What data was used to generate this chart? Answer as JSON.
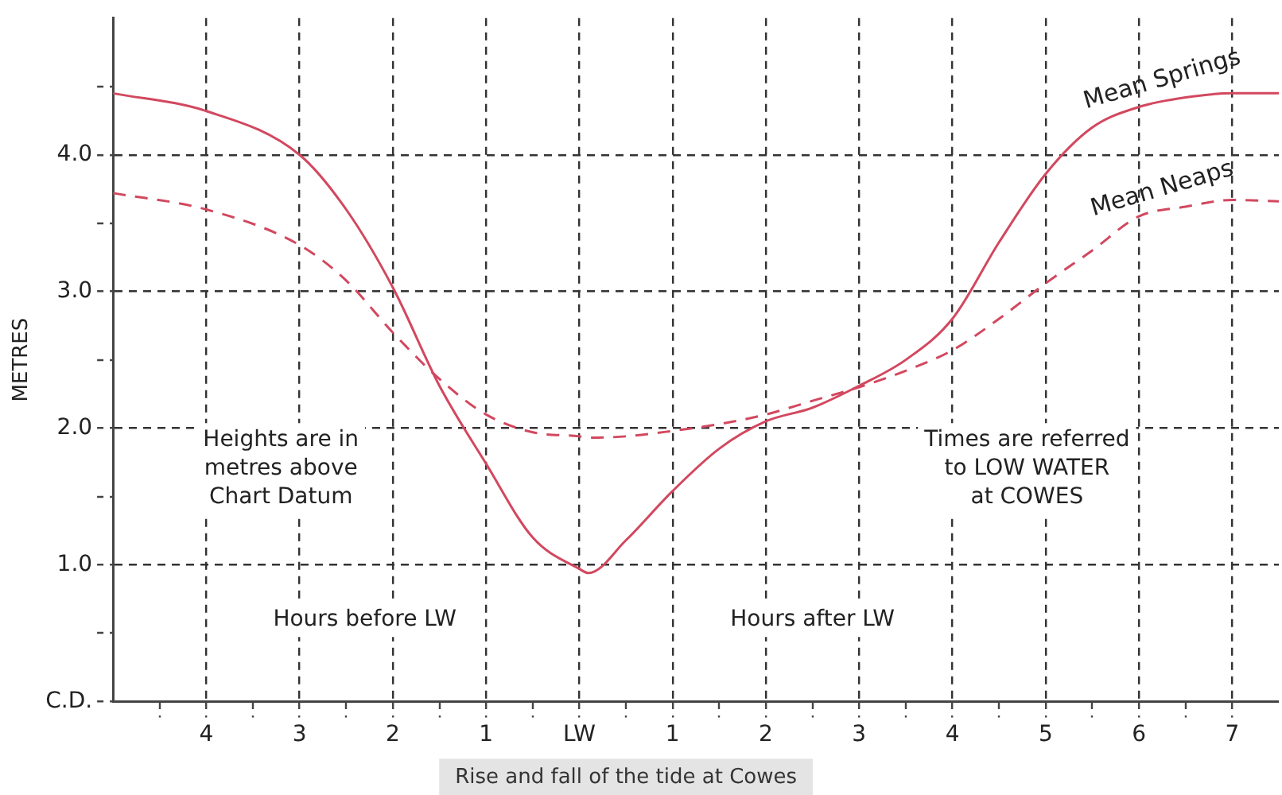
{
  "chart_data": {
    "type": "line",
    "ylabel": "METRES",
    "legend": false,
    "grid": true,
    "xlim": [
      -5,
      7.5
    ],
    "ylim": [
      0,
      5
    ],
    "xticks": [
      {
        "value": -4.5,
        "label": null
      },
      {
        "value": -4,
        "label": "4"
      },
      {
        "value": -3.5,
        "label": null
      },
      {
        "value": -3,
        "label": "3"
      },
      {
        "value": -2.5,
        "label": null
      },
      {
        "value": -2,
        "label": "2"
      },
      {
        "value": -1.5,
        "label": null
      },
      {
        "value": -1,
        "label": "1"
      },
      {
        "value": -0.5,
        "label": null
      },
      {
        "value": 0,
        "label": "LW"
      },
      {
        "value": 0.5,
        "label": null
      },
      {
        "value": 1,
        "label": "1"
      },
      {
        "value": 1.5,
        "label": null
      },
      {
        "value": 2,
        "label": "2"
      },
      {
        "value": 2.5,
        "label": null
      },
      {
        "value": 3,
        "label": "3"
      },
      {
        "value": 3.5,
        "label": null
      },
      {
        "value": 4,
        "label": "4"
      },
      {
        "value": 4.5,
        "label": null
      },
      {
        "value": 5,
        "label": "5"
      },
      {
        "value": 5.5,
        "label": null
      },
      {
        "value": 6,
        "label": "6"
      },
      {
        "value": 6.5,
        "label": null
      },
      {
        "value": 7,
        "label": "7"
      }
    ],
    "yticks": [
      {
        "value": 0,
        "label": "C.D."
      },
      {
        "value": 0.5,
        "label": null
      },
      {
        "value": 1,
        "label": "1.0"
      },
      {
        "value": 1.5,
        "label": null
      },
      {
        "value": 2,
        "label": "2.0"
      },
      {
        "value": 2.5,
        "label": null
      },
      {
        "value": 3,
        "label": "3.0"
      },
      {
        "value": 3.5,
        "label": null
      },
      {
        "value": 4,
        "label": "4.0"
      },
      {
        "value": 4.5,
        "label": null
      }
    ],
    "x": [
      -5,
      -4,
      -3,
      -2.5,
      -2,
      -1.5,
      -1,
      -0.5,
      0,
      0.1,
      0.5,
      1,
      1.5,
      2,
      2.5,
      3,
      3.5,
      4,
      4.5,
      5,
      5.5,
      6,
      6.5,
      7,
      7.5
    ],
    "series": [
      {
        "name": "Mean Springs",
        "color": "#d2485f",
        "line_style": "solid",
        "values": [
          4.45,
          4.32,
          4.0,
          3.6,
          3.03,
          2.31,
          1.74,
          1.2,
          0.97,
          0.94,
          1.18,
          1.54,
          1.85,
          2.05,
          2.15,
          2.31,
          2.5,
          2.8,
          3.36,
          3.86,
          4.2,
          4.35,
          4.42,
          4.45,
          4.45
        ]
      },
      {
        "name": "Mean Neaps",
        "color": "#d2485f",
        "line_style": "dashed",
        "values": [
          3.72,
          3.6,
          3.34,
          3.08,
          2.7,
          2.36,
          2.1,
          1.97,
          1.94,
          1.93,
          1.94,
          1.98,
          2.03,
          2.1,
          2.2,
          2.3,
          2.42,
          2.57,
          2.8,
          3.06,
          3.3,
          3.55,
          3.62,
          3.67,
          3.66
        ]
      }
    ],
    "annotations": [
      "Heights are in\nmetres above\nChart Datum",
      "Times are referred\nto LOW WATER\nat COWES",
      "Hours before LW",
      "Hours after LW",
      "Rise and fall of the tide at Cowes"
    ]
  }
}
